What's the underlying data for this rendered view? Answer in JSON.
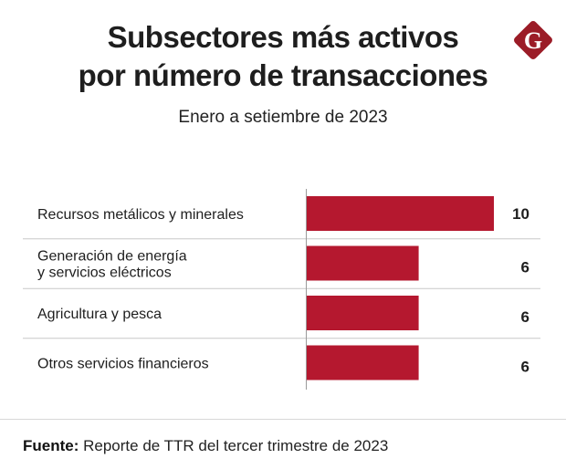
{
  "header": {
    "title_line1": "Subsectores más activos",
    "title_line2": "por número de transacciones",
    "subtitle": "Enero a setiembre de 2023",
    "logo_icon": "gestion-g-logo-icon",
    "logo_letter": "G"
  },
  "colors": {
    "bar": "#b5182f",
    "logo": "#9b1c27",
    "text": "#1e1e1e",
    "gridline": "#c8c8c8"
  },
  "chart_data": {
    "type": "bar",
    "orientation": "horizontal",
    "title": "Subsectores más activos por número de transacciones",
    "subtitle": "Enero a setiembre de 2023",
    "xlabel": "",
    "ylabel": "",
    "categories": [
      "Recursos metálicos y minerales",
      "Generación de energía\ny servicios eléctricos",
      "Agricultura y pesca",
      "Otros servicios financieros"
    ],
    "values": [
      10,
      6,
      6,
      6
    ],
    "value_labels": [
      "10",
      "6",
      "6",
      "6"
    ],
    "xlim": [
      0,
      10
    ],
    "grid": false,
    "legend": "none"
  },
  "footer": {
    "source_label": "Fuente:",
    "source_text": " Reporte de TTR del tercer trimestre de 2023"
  }
}
